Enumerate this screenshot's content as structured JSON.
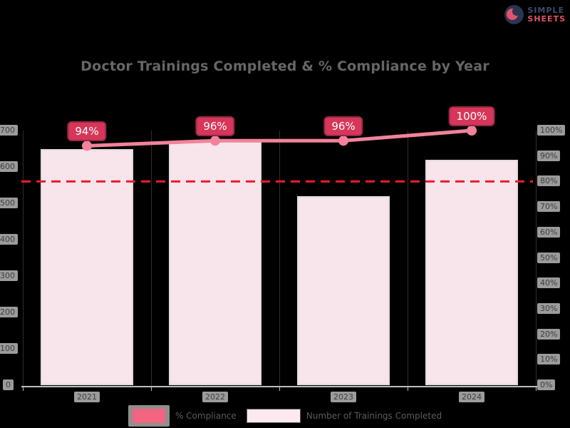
{
  "page": {
    "background": "#000000"
  },
  "logo": {
    "icon": "circle-swirl-logo-icon",
    "line1": "SIMPLE",
    "line2": "SHEETS",
    "line1_color": "#3d4a6a",
    "line2_color": "#e0506b"
  },
  "chart_data": {
    "type": "bar",
    "title": "Doctor Trainings Completed & % Compliance by Year",
    "title_color": "#666666",
    "categories": [
      "2021",
      "2022",
      "2023",
      "2024"
    ],
    "series": [
      {
        "name": "Number of Trainings Completed",
        "type": "bar",
        "axis": "left",
        "fill": "#f8e4eb",
        "border": "#dfdcdc",
        "values": [
          650,
          670,
          520,
          620
        ]
      },
      {
        "name": "% Compliance",
        "type": "line",
        "axis": "right",
        "color": "#f2839a",
        "values": [
          94,
          96,
          96,
          100
        ],
        "point_labels": [
          "94%",
          "96%",
          "96%",
          "100%"
        ]
      }
    ],
    "axes": {
      "left": {
        "min": 0,
        "max": 700,
        "ticks": [
          "700",
          "600",
          "500",
          "400",
          "300",
          "200",
          "100",
          "0"
        ]
      },
      "right": {
        "min": 0,
        "max": 100,
        "ticks": [
          "100%",
          "90%",
          "80%",
          "70%",
          "60%",
          "50%",
          "40%",
          "30%",
          "20%",
          "10%",
          "0%"
        ]
      }
    },
    "target_line": {
      "axis": "right",
      "value": 80,
      "color": "#ee1c25",
      "style": "dashed"
    },
    "badge": {
      "bg": "#d63758",
      "border": "#93274a",
      "text_color": "#ffffff"
    },
    "tick_chip": {
      "bg": "#9b9b9b",
      "text_color": "#3e3e3e"
    },
    "legend": [
      {
        "label": "% Compliance",
        "swatch_type": "filled",
        "swatch": "#f2647f",
        "chip_bg": "#8f8f8f"
      },
      {
        "label": "Number of Trainings Completed",
        "swatch_type": "outlined",
        "swatch": "#fce9f0",
        "swatch_border": "#5a5a5a"
      }
    ],
    "legend_text_color": "#5c5c5c",
    "grid": "vertical-category-boundaries",
    "legend_position": "bottom-center"
  }
}
